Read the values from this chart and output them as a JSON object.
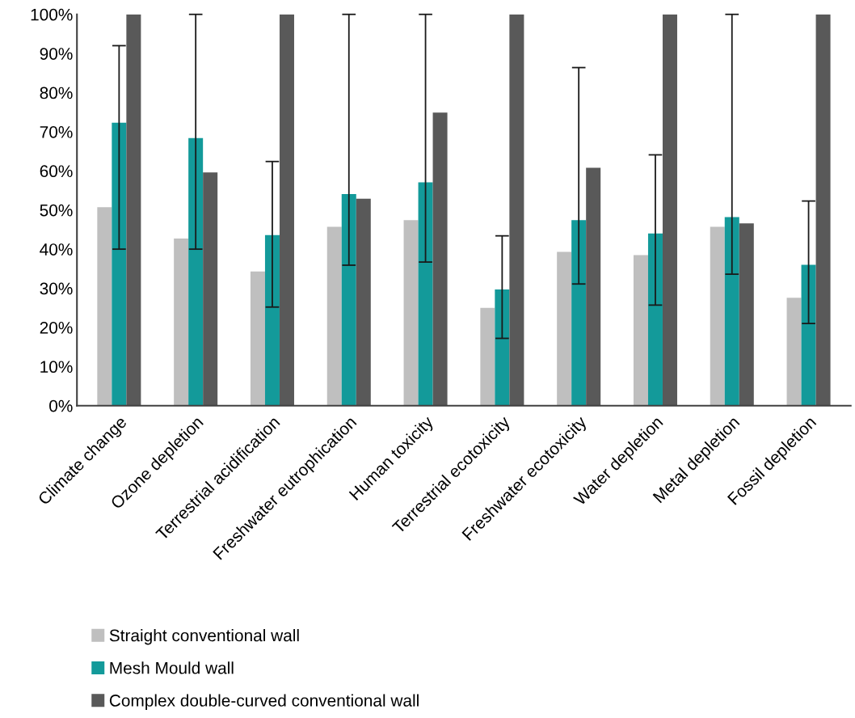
{
  "chart_data": {
    "type": "bar",
    "categories": [
      "Climate change",
      "Ozone depletion",
      "Terrestrial acidification",
      "Freshwater eutrophication",
      "Human toxicity",
      "Terrestrial ecotoxicity",
      "Freshwater ecotoxicity",
      "Water depletion",
      "Metal depletion",
      "Fossil depletion"
    ],
    "series": [
      {
        "name": "Straight conventional wall",
        "color": "#bfbfbf",
        "values": [
          50.7,
          42.7,
          34.3,
          45.7,
          47.4,
          25.0,
          39.3,
          38.5,
          45.7,
          27.6
        ]
      },
      {
        "name": "Mesh Mould wall",
        "color": "#139a9a",
        "values": [
          72.3,
          68.4,
          43.6,
          54.1,
          57.1,
          29.7,
          47.4,
          44.0,
          48.2,
          36.0
        ],
        "errors": [
          [
            40.0,
            92.0
          ],
          [
            40.0,
            100
          ],
          [
            25.2,
            62.4
          ],
          [
            35.9,
            100
          ],
          [
            36.7,
            100
          ],
          [
            17.2,
            43.4
          ],
          [
            31.1,
            86.4
          ],
          [
            25.7,
            64.1
          ],
          [
            33.6,
            100
          ],
          [
            21.0,
            52.3
          ]
        ]
      },
      {
        "name": "Complex double-curved conventional wall",
        "color": "#595959",
        "values": [
          100,
          59.6,
          100,
          52.9,
          74.9,
          100,
          60.8,
          100,
          46.6,
          100
        ]
      }
    ],
    "ylim": [
      0,
      100
    ],
    "yticks": [
      {
        "value": 0,
        "label": "0%"
      },
      {
        "value": 10,
        "label": "10%"
      },
      {
        "value": 20,
        "label": "20%"
      },
      {
        "value": 30,
        "label": "30%"
      },
      {
        "value": 40,
        "label": "40%"
      },
      {
        "value": 50,
        "label": "50%"
      },
      {
        "value": 60,
        "label": "60%"
      },
      {
        "value": 70,
        "label": "70%"
      },
      {
        "value": 80,
        "label": "80%"
      },
      {
        "value": 90,
        "label": "90%"
      },
      {
        "value": 100,
        "label": "100%"
      }
    ],
    "grid": false,
    "legend": "bottom"
  }
}
